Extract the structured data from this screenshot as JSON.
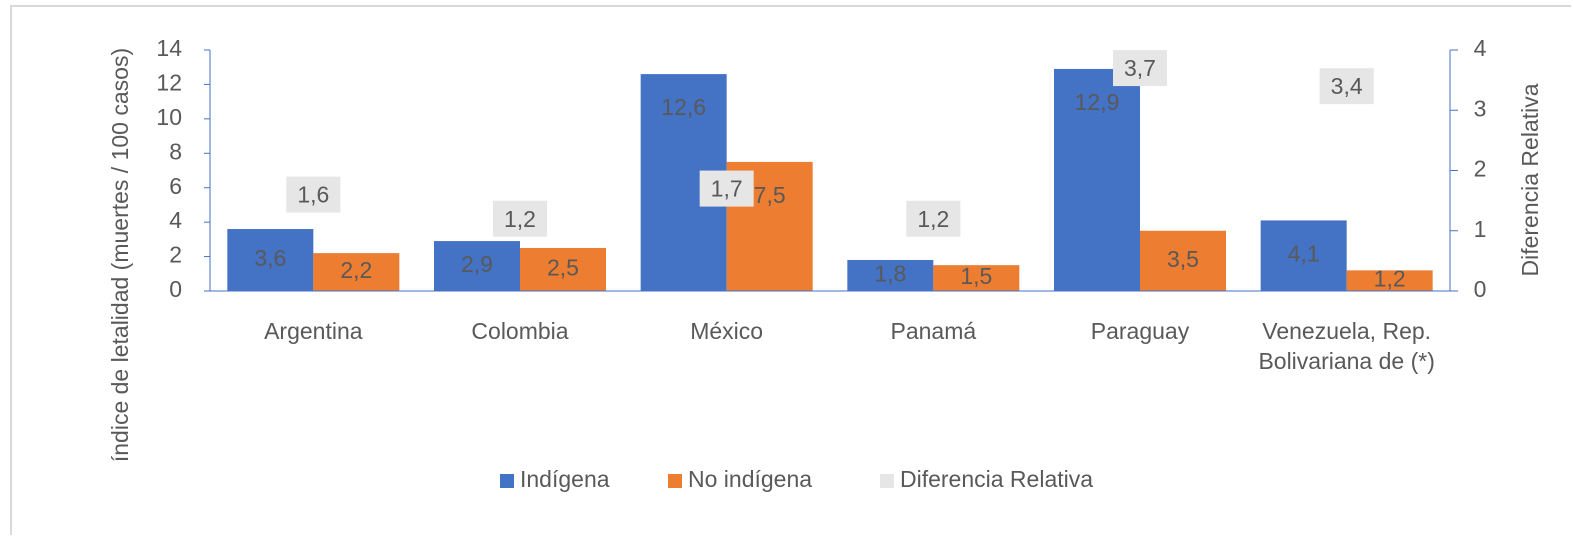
{
  "chart_data": {
    "type": "bar",
    "y_label": "índice de letalidad (muertes / 100 casos)",
    "y2_label": "Diferencia Relativa",
    "categories": [
      "Argentina",
      "Colombia",
      "México",
      "Panamá",
      "Paraguay",
      "Venezuela, Rep. Bolivariana de (*)"
    ],
    "series": [
      {
        "name": "Indígena",
        "color": "#4472c4",
        "values": [
          3.6,
          2.9,
          12.6,
          1.8,
          12.9,
          4.1
        ],
        "value_labels": [
          "3,6",
          "2,9",
          "12,6",
          "1,8",
          "12,9",
          "4,1"
        ]
      },
      {
        "name": "No indígena",
        "color": "#ed7d31",
        "values": [
          2.2,
          2.5,
          7.5,
          1.5,
          3.5,
          1.2
        ],
        "value_labels": [
          "2,2",
          "2,5",
          "7,5",
          "1,5",
          "3,5",
          "1,2"
        ]
      },
      {
        "name": "Diferencia Relativa",
        "color": "#e7e6e6",
        "axis": "y2",
        "values": [
          1.6,
          1.2,
          1.7,
          1.2,
          3.7,
          3.4
        ],
        "value_labels": [
          "1,6",
          "1,2",
          "1,7",
          "1,2",
          "3,7",
          "3,4"
        ]
      }
    ],
    "ylim": [
      0,
      14
    ],
    "yticks": [
      0,
      2,
      4,
      6,
      8,
      10,
      12,
      14
    ],
    "y2lim": [
      0,
      4
    ],
    "y2ticks": [
      0,
      1,
      2,
      3,
      4
    ],
    "legend": "bottom"
  }
}
